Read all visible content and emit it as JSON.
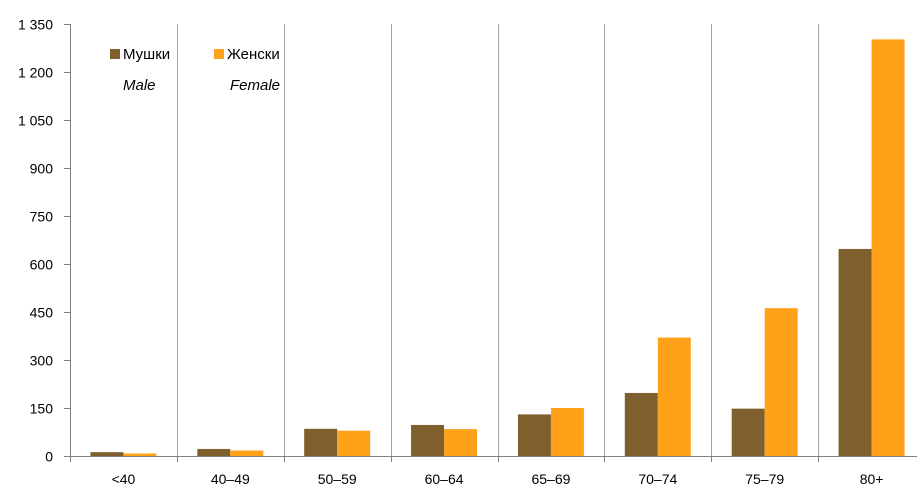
{
  "chart_data": {
    "type": "bar",
    "categories": [
      "<40",
      "40–49",
      "50–59",
      "60–64",
      "65–69",
      "70–74",
      "75–79",
      "80+"
    ],
    "series": [
      {
        "name": "Мушки",
        "subname": "Male",
        "color": "#7f5f2e",
        "values": [
          12,
          22,
          85,
          97,
          130,
          197,
          148,
          647
        ]
      },
      {
        "name": "Женски",
        "subname": "Female",
        "color": "#ffa219",
        "values": [
          8,
          17,
          79,
          84,
          150,
          370,
          462,
          1302
        ]
      }
    ],
    "ylim": [
      0,
      1350
    ],
    "yticks": [
      0,
      150,
      300,
      450,
      600,
      750,
      900,
      1050,
      1200,
      1350
    ],
    "ytick_labels": [
      "0",
      "150",
      "300",
      "450",
      "600",
      "750",
      "900",
      "1 050",
      "1 200",
      "1 350"
    ],
    "grid": {
      "vertical": true,
      "horizontal": false
    },
    "legend_position": "top-left",
    "gridline_color": "#a6a6a6",
    "axis_color": "#808080"
  }
}
